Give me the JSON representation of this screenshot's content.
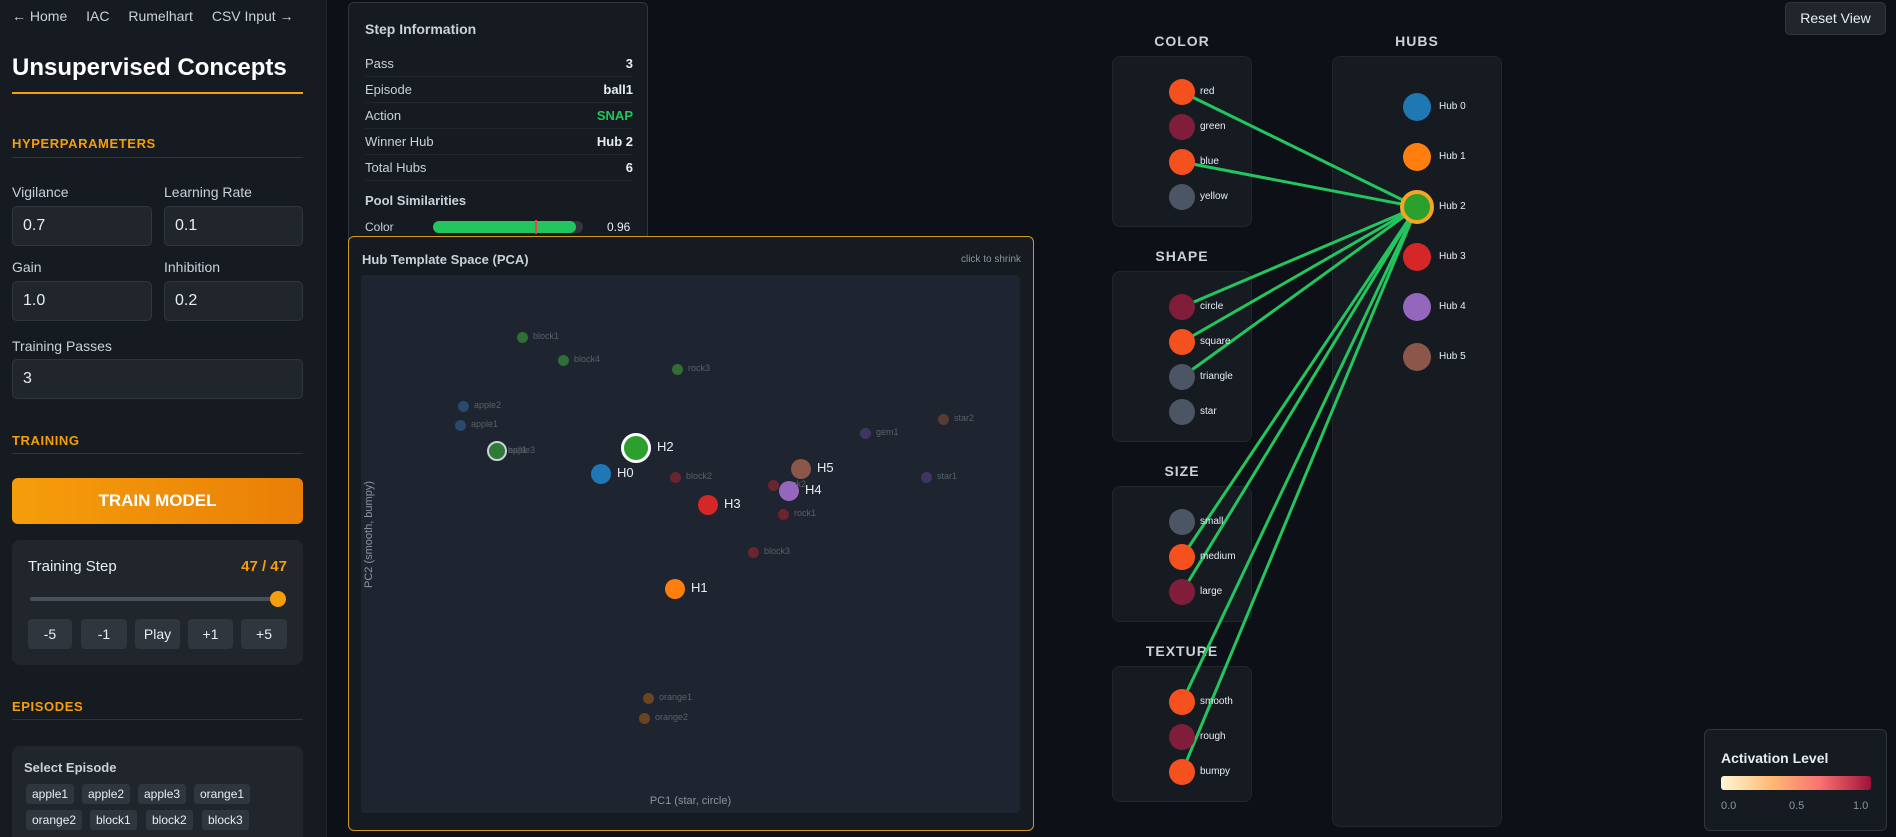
{
  "nav": {
    "home": "← Home",
    "iac": "IAC",
    "rumelhart": "Rumelhart",
    "csv": "CSV Input →"
  },
  "app_title": "Unsupervised Concepts",
  "hyperparameters": {
    "heading": "HYPERPARAMETERS",
    "vigilance_label": "Vigilance",
    "vigilance": "0.7",
    "learning_rate_label": "Learning Rate",
    "learning_rate": "0.1",
    "gain_label": "Gain",
    "gain": "1.0",
    "inhibition_label": "Inhibition",
    "inhibition": "0.2",
    "passes_label": "Training Passes",
    "passes": "3"
  },
  "training": {
    "heading": "TRAINING",
    "train_button": "TRAIN MODEL",
    "step_label": "Training Step",
    "step_count": "47 / 47",
    "step_progress": 1.0,
    "buttons": [
      "-5",
      "-1",
      "Play",
      "+1",
      "+5"
    ]
  },
  "episodes": {
    "heading": "EPISODES",
    "select_label": "Select Episode",
    "chips": [
      "apple1",
      "apple2",
      "apple3",
      "orange1",
      "orange2",
      "block1",
      "block2",
      "block3"
    ]
  },
  "step_info": {
    "title": "Step Information",
    "rows": [
      {
        "key": "Pass",
        "value": "3"
      },
      {
        "key": "Episode",
        "value": "ball1"
      },
      {
        "key": "Action",
        "value": "SNAP"
      },
      {
        "key": "Winner Hub",
        "value": "Hub 2"
      },
      {
        "key": "Total Hubs",
        "value": "6"
      }
    ],
    "pool_title": "Pool Similarities",
    "similarities": [
      {
        "pool": "Color",
        "value": "0.96",
        "fraction": 0.96
      }
    ],
    "action_color": "#22c55e"
  },
  "pca": {
    "title": "Hub Template Space (PCA)",
    "hint": "click to shrink",
    "xlabel": "PC1 (star, circle)",
    "ylabel": "PC2 (smooth, bumpy)",
    "episodes": [
      {
        "name": "block1",
        "color": "#2f6e35"
      },
      {
        "name": "block4",
        "color": "#2f6e35"
      },
      {
        "name": "rock3",
        "color": "#2f6e35"
      },
      {
        "name": "apple2",
        "color": "#284a70"
      },
      {
        "name": "apple1",
        "color": "#284a70"
      },
      {
        "name": "apple3",
        "color": "#284a70"
      },
      {
        "name": "ball1",
        "color": "#2f6e35"
      },
      {
        "name": "block2",
        "color": "#6b2530"
      },
      {
        "name": "rock2",
        "color": "#6b2530"
      },
      {
        "name": "rock1",
        "color": "#6b2530"
      },
      {
        "name": "block3",
        "color": "#6b2530"
      },
      {
        "name": "gem1",
        "color": "#3e3560"
      },
      {
        "name": "star1",
        "color": "#3e3560"
      },
      {
        "name": "star2",
        "color": "#5a3a32"
      },
      {
        "name": "orange1",
        "color": "#6b4520"
      },
      {
        "name": "orange2",
        "color": "#6b4520"
      }
    ],
    "hubs": [
      {
        "name": "H0",
        "color": "#1f77b4"
      },
      {
        "name": "H1",
        "color": "#ff7f0e"
      },
      {
        "name": "H2",
        "color": "#2ca02c"
      },
      {
        "name": "H3",
        "color": "#d62728"
      },
      {
        "name": "H4",
        "color": "#9467bd"
      },
      {
        "name": "H5",
        "color": "#8c564b"
      }
    ]
  },
  "network": {
    "pools": [
      {
        "title": "COLOR",
        "nodes": [
          {
            "label": "red",
            "color": "#f4511e",
            "active": true
          },
          {
            "label": "green",
            "color": "#7f1d3a",
            "active": false
          },
          {
            "label": "blue",
            "color": "#f4511e",
            "active": true
          },
          {
            "label": "yellow",
            "color": "#4b5563",
            "active": false
          }
        ]
      },
      {
        "title": "SHAPE",
        "nodes": [
          {
            "label": "circle",
            "color": "#7f1d3a",
            "active": true
          },
          {
            "label": "square",
            "color": "#f4511e",
            "active": true
          },
          {
            "label": "triangle",
            "color": "#4b5563",
            "active": true
          },
          {
            "label": "star",
            "color": "#4b5563",
            "active": false
          }
        ]
      },
      {
        "title": "SIZE",
        "nodes": [
          {
            "label": "small",
            "color": "#4b5563",
            "active": false
          },
          {
            "label": "medium",
            "color": "#f4511e",
            "active": true
          },
          {
            "label": "large",
            "color": "#7f1d3a",
            "active": true
          }
        ]
      },
      {
        "title": "TEXTURE",
        "nodes": [
          {
            "label": "smooth",
            "color": "#f4511e",
            "active": true
          },
          {
            "label": "rough",
            "color": "#7f1d3a",
            "active": false
          },
          {
            "label": "bumpy",
            "color": "#f4511e",
            "active": true
          }
        ]
      }
    ],
    "hubs_title": "HUBS",
    "hubs": [
      {
        "label": "Hub 0",
        "color": "#1f77b4"
      },
      {
        "label": "Hub 1",
        "color": "#ff7f0e"
      },
      {
        "label": "Hub 2",
        "color": "#2ca02c"
      },
      {
        "label": "Hub 3",
        "color": "#d62728"
      },
      {
        "label": "Hub 4",
        "color": "#9467bd"
      },
      {
        "label": "Hub 5",
        "color": "#8c564b"
      }
    ],
    "winner_hub": "Hub 2",
    "link_color": "#22c55e",
    "winner_ring_color": "#f5a524"
  },
  "reset_view": "Reset View",
  "legend": {
    "title": "Activation Level",
    "ticks": [
      "0.0",
      "0.5",
      "1.0"
    ]
  },
  "colors": {
    "accent": "#f59e0b",
    "background": "#0d1117",
    "panel": "#161b22"
  }
}
